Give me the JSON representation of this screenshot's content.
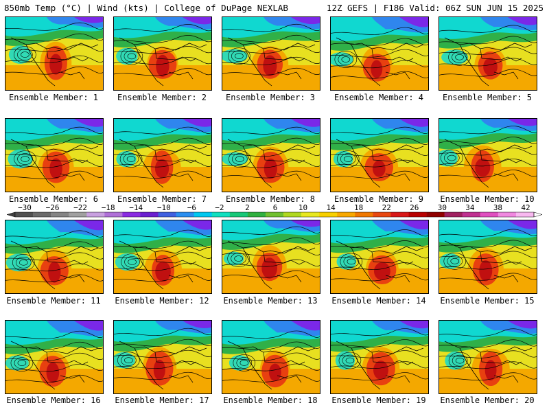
{
  "header": {
    "title_left": "850mb Temp (°C) | Wind (kts) | College of DuPage NEXLAB",
    "title_right": "12Z GEFS | F186 Valid: 06Z SUN JUN 15 2025"
  },
  "member_prefix": "Ensemble Member: ",
  "members": [
    {
      "label": "Ensemble Member: 1"
    },
    {
      "label": "Ensemble Member: 2"
    },
    {
      "label": "Ensemble Member: 3"
    },
    {
      "label": "Ensemble Member: 4"
    },
    {
      "label": "Ensemble Member: 5"
    },
    {
      "label": "Ensemble Member: 6"
    },
    {
      "label": "Ensemble Member: 7"
    },
    {
      "label": "Ensemble Member: 8"
    },
    {
      "label": "Ensemble Member: 9"
    },
    {
      "label": "Ensemble Member: 10"
    },
    {
      "label": "Ensemble Member: 11"
    },
    {
      "label": "Ensemble Member: 12"
    },
    {
      "label": "Ensemble Member: 13"
    },
    {
      "label": "Ensemble Member: 14"
    },
    {
      "label": "Ensemble Member: 15"
    },
    {
      "label": "Ensemble Member: 16"
    },
    {
      "label": "Ensemble Member: 17"
    },
    {
      "label": "Ensemble Member: 18"
    },
    {
      "label": "Ensemble Member: 19"
    },
    {
      "label": "Ensemble Member: 20"
    }
  ],
  "colorbar": {
    "ticks": [
      "−30",
      "−26",
      "−22",
      "−18",
      "−14",
      "−10",
      "−6",
      "−2",
      "2",
      "6",
      "10",
      "14",
      "18",
      "22",
      "26",
      "30",
      "34",
      "38",
      "42"
    ],
    "colors": [
      "#505050",
      "#6a6a6a",
      "#858585",
      "#a0a0a0",
      "#c8a0e0",
      "#b070d8",
      "#8a2be2",
      "#6a1fd0",
      "#4060e0",
      "#2a8ef0",
      "#00c8f0",
      "#10e0c0",
      "#18c878",
      "#30b040",
      "#70c030",
      "#b0d820",
      "#e8e820",
      "#f8d000",
      "#f8a800",
      "#f07800",
      "#e84810",
      "#d81818",
      "#b80000",
      "#900000",
      "#a02060",
      "#c03090",
      "#e050c0",
      "#f088e0",
      "#f8b8f0"
    ]
  },
  "map_colors": {
    "cold": "#7a28e8",
    "cool": "#2f86ee",
    "mild": "#10d8d0",
    "warm_green": "#30b048",
    "yellow": "#e8e020",
    "orange": "#f4a800",
    "hot": "#e84010",
    "extreme": "#c01010"
  }
}
